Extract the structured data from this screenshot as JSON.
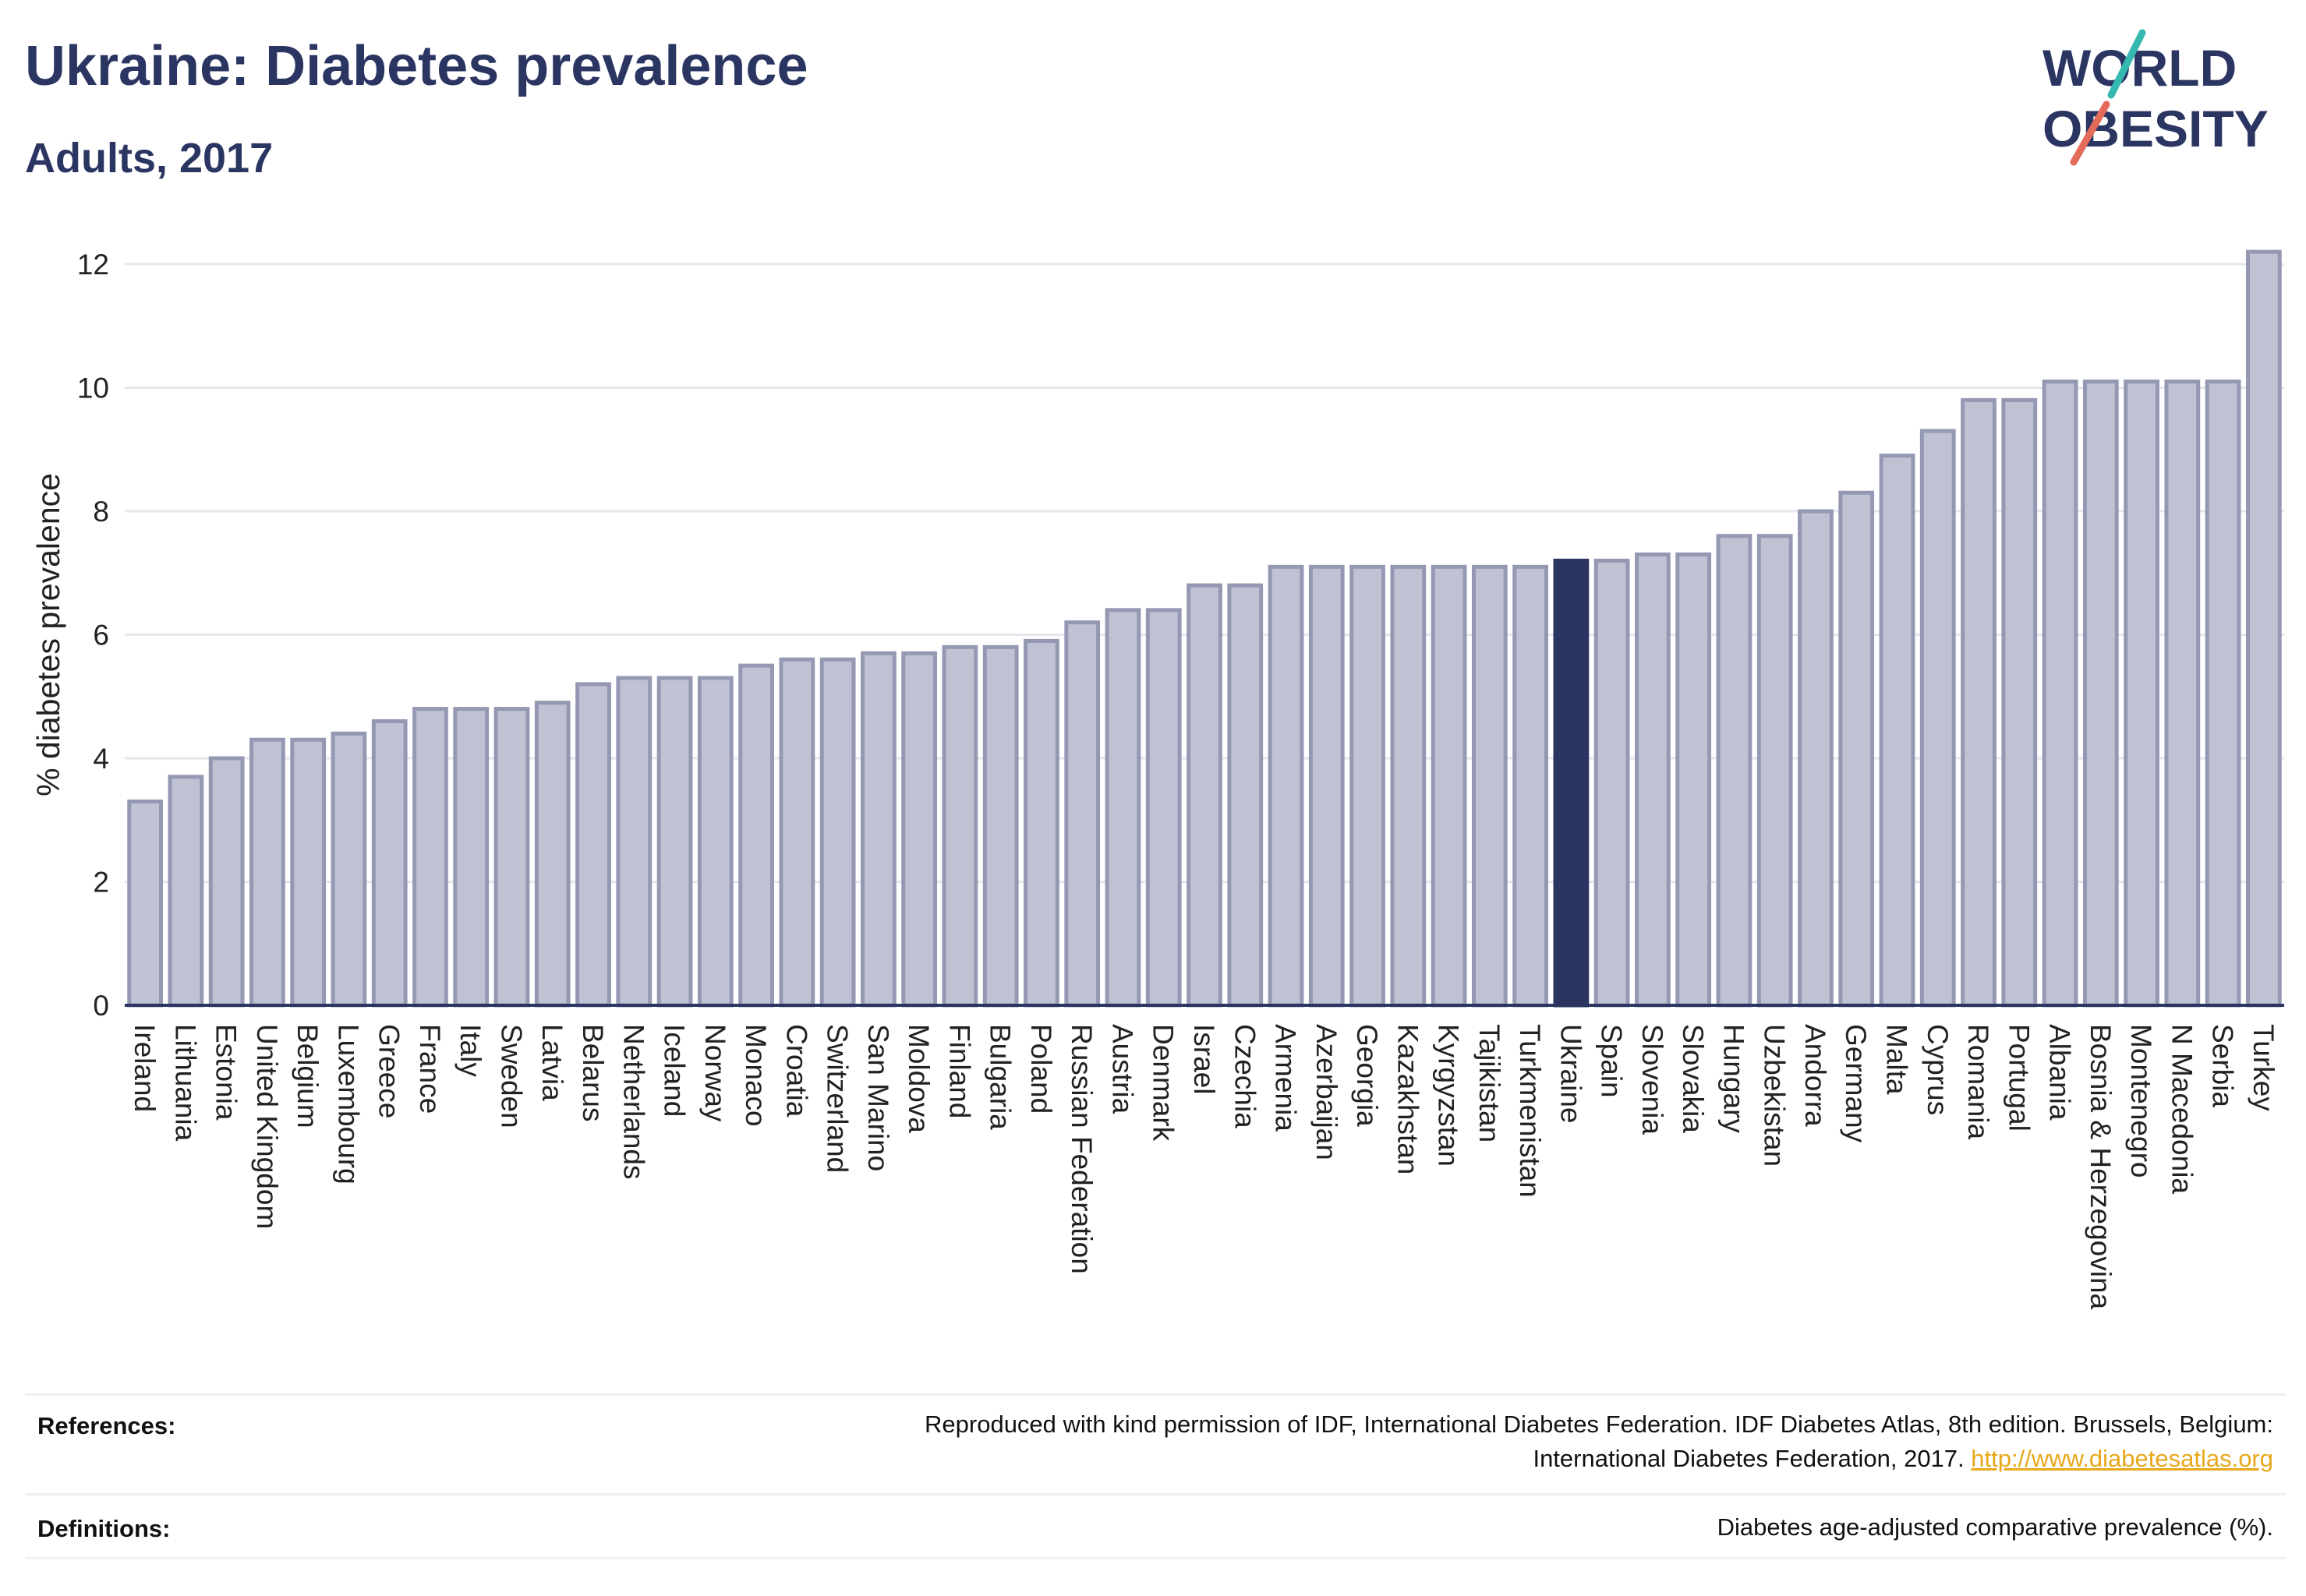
{
  "header": {
    "title": "Ukraine: Diabetes prevalence",
    "subtitle": "Adults, 2017"
  },
  "logo": {
    "line1": "WORLD",
    "line2": "OBESITY",
    "colors": {
      "text": "#2b3562",
      "slash_teal": "#35b8b0",
      "slash_red": "#e36b5a"
    }
  },
  "colors": {
    "bar": "#bfc2d2",
    "bar_border": "#9498b2",
    "highlight": "#2b3562",
    "grid": "#e6e7ee",
    "axis": "#2b3562"
  },
  "chart_data": {
    "type": "bar",
    "title": "Ukraine: Diabetes prevalence",
    "subtitle": "Adults, 2017",
    "ylabel": "% diabetes prevalence",
    "xlabel": "",
    "ylim": [
      0,
      12.2
    ],
    "yticks": [
      0,
      2,
      4,
      6,
      8,
      10,
      12
    ],
    "grid": true,
    "highlight": "Ukraine",
    "categories": [
      "Ireland",
      "Lithuania",
      "Estonia",
      "United Kingdom",
      "Belgium",
      "Luxembourg",
      "Greece",
      "France",
      "Italy",
      "Sweden",
      "Latvia",
      "Belarus",
      "Netherlands",
      "Iceland",
      "Norway",
      "Monaco",
      "Croatia",
      "Switzerland",
      "San Marino",
      "Moldova",
      "Finland",
      "Bulgaria",
      "Poland",
      "Russian Federation",
      "Austria",
      "Denmark",
      "Israel",
      "Czechia",
      "Armenia",
      "Azerbaijan",
      "Georgia",
      "Kazakhstan",
      "Kyrgyzstan",
      "Tajikistan",
      "Turkmenistan",
      "Ukraine",
      "Spain",
      "Slovenia",
      "Slovakia",
      "Hungary",
      "Uzbekistan",
      "Andorra",
      "Germany",
      "Malta",
      "Cyprus",
      "Romania",
      "Portugal",
      "Albania",
      "Bosnia & Herzegovina",
      "Montenegro",
      "N Macedonia",
      "Serbia",
      "Turkey"
    ],
    "values": [
      3.3,
      3.7,
      4.0,
      4.3,
      4.3,
      4.4,
      4.6,
      4.8,
      4.8,
      4.8,
      4.9,
      5.2,
      5.3,
      5.3,
      5.3,
      5.5,
      5.6,
      5.6,
      5.7,
      5.7,
      5.8,
      5.8,
      5.9,
      6.2,
      6.4,
      6.4,
      6.8,
      6.8,
      7.1,
      7.1,
      7.1,
      7.1,
      7.1,
      7.1,
      7.1,
      7.2,
      7.2,
      7.3,
      7.3,
      7.6,
      7.6,
      8.0,
      8.3,
      8.9,
      9.3,
      9.8,
      9.8,
      10.1,
      10.1,
      10.1,
      10.1,
      10.1,
      12.2
    ]
  },
  "footer": {
    "references_label": "References:",
    "references_text_1": "Reproduced with kind permission of IDF, International Diabetes Federation. IDF Diabetes Atlas, 8th edition. Brussels, Belgium:",
    "references_text_2": "International Diabetes Federation, 2017.",
    "references_link": "http://www.diabetesatlas.org",
    "definitions_label": "Definitions:",
    "definitions_text": "Diabetes age-adjusted comparative prevalence (%)."
  }
}
